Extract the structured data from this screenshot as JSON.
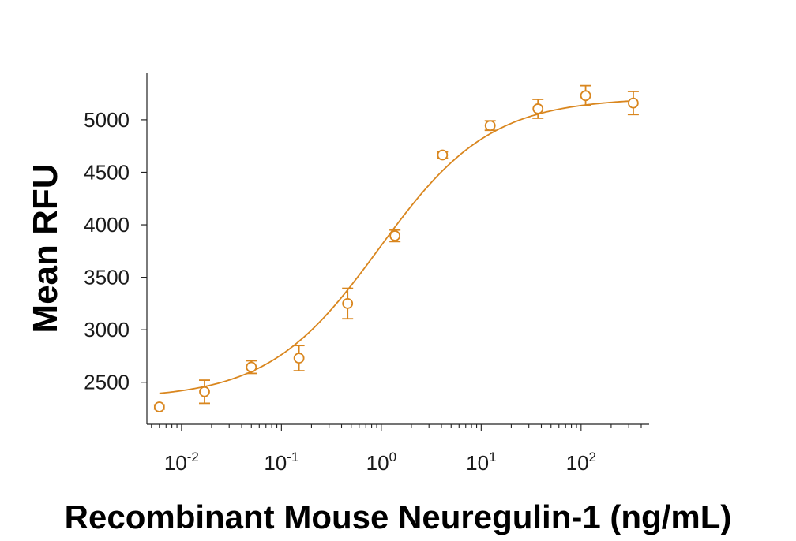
{
  "chart_data": {
    "type": "scatter",
    "title": "",
    "xlabel": "Recombinant Mouse Neuregulin-1 (ng/mL)",
    "ylabel": "Mean RFU",
    "x_scale": "log",
    "xlim": [
      0.0045,
      480
    ],
    "ylim": [
      2100,
      5450
    ],
    "y_ticks": [
      2500,
      3000,
      3500,
      4000,
      4500,
      5000
    ],
    "x_ticks": [
      {
        "base": "10",
        "exp": "-2",
        "value": 0.01
      },
      {
        "base": "10",
        "exp": "-1",
        "value": 0.1
      },
      {
        "base": "10",
        "exp": "0",
        "value": 1
      },
      {
        "base": "10",
        "exp": "1",
        "value": 10
      },
      {
        "base": "10",
        "exp": "2",
        "value": 100
      }
    ],
    "color": "#D9861E",
    "grid": false,
    "legend": "none",
    "points": [
      {
        "x": 0.006,
        "y": 2265,
        "err": 20
      },
      {
        "x": 0.017,
        "y": 2410,
        "err": 110
      },
      {
        "x": 0.05,
        "y": 2645,
        "err": 60
      },
      {
        "x": 0.15,
        "y": 2730,
        "err": 120
      },
      {
        "x": 0.46,
        "y": 3250,
        "err": 145
      },
      {
        "x": 1.37,
        "y": 3895,
        "err": 55
      },
      {
        "x": 4.1,
        "y": 4665,
        "err": 30
      },
      {
        "x": 12.3,
        "y": 4945,
        "err": 45
      },
      {
        "x": 37,
        "y": 5105,
        "err": 90
      },
      {
        "x": 111,
        "y": 5230,
        "err": 95
      },
      {
        "x": 333,
        "y": 5160,
        "err": 110
      }
    ],
    "fit": {
      "model": "4PL",
      "bottom": 2340,
      "top": 5210,
      "ec50": 0.95,
      "hill": 0.78
    }
  }
}
